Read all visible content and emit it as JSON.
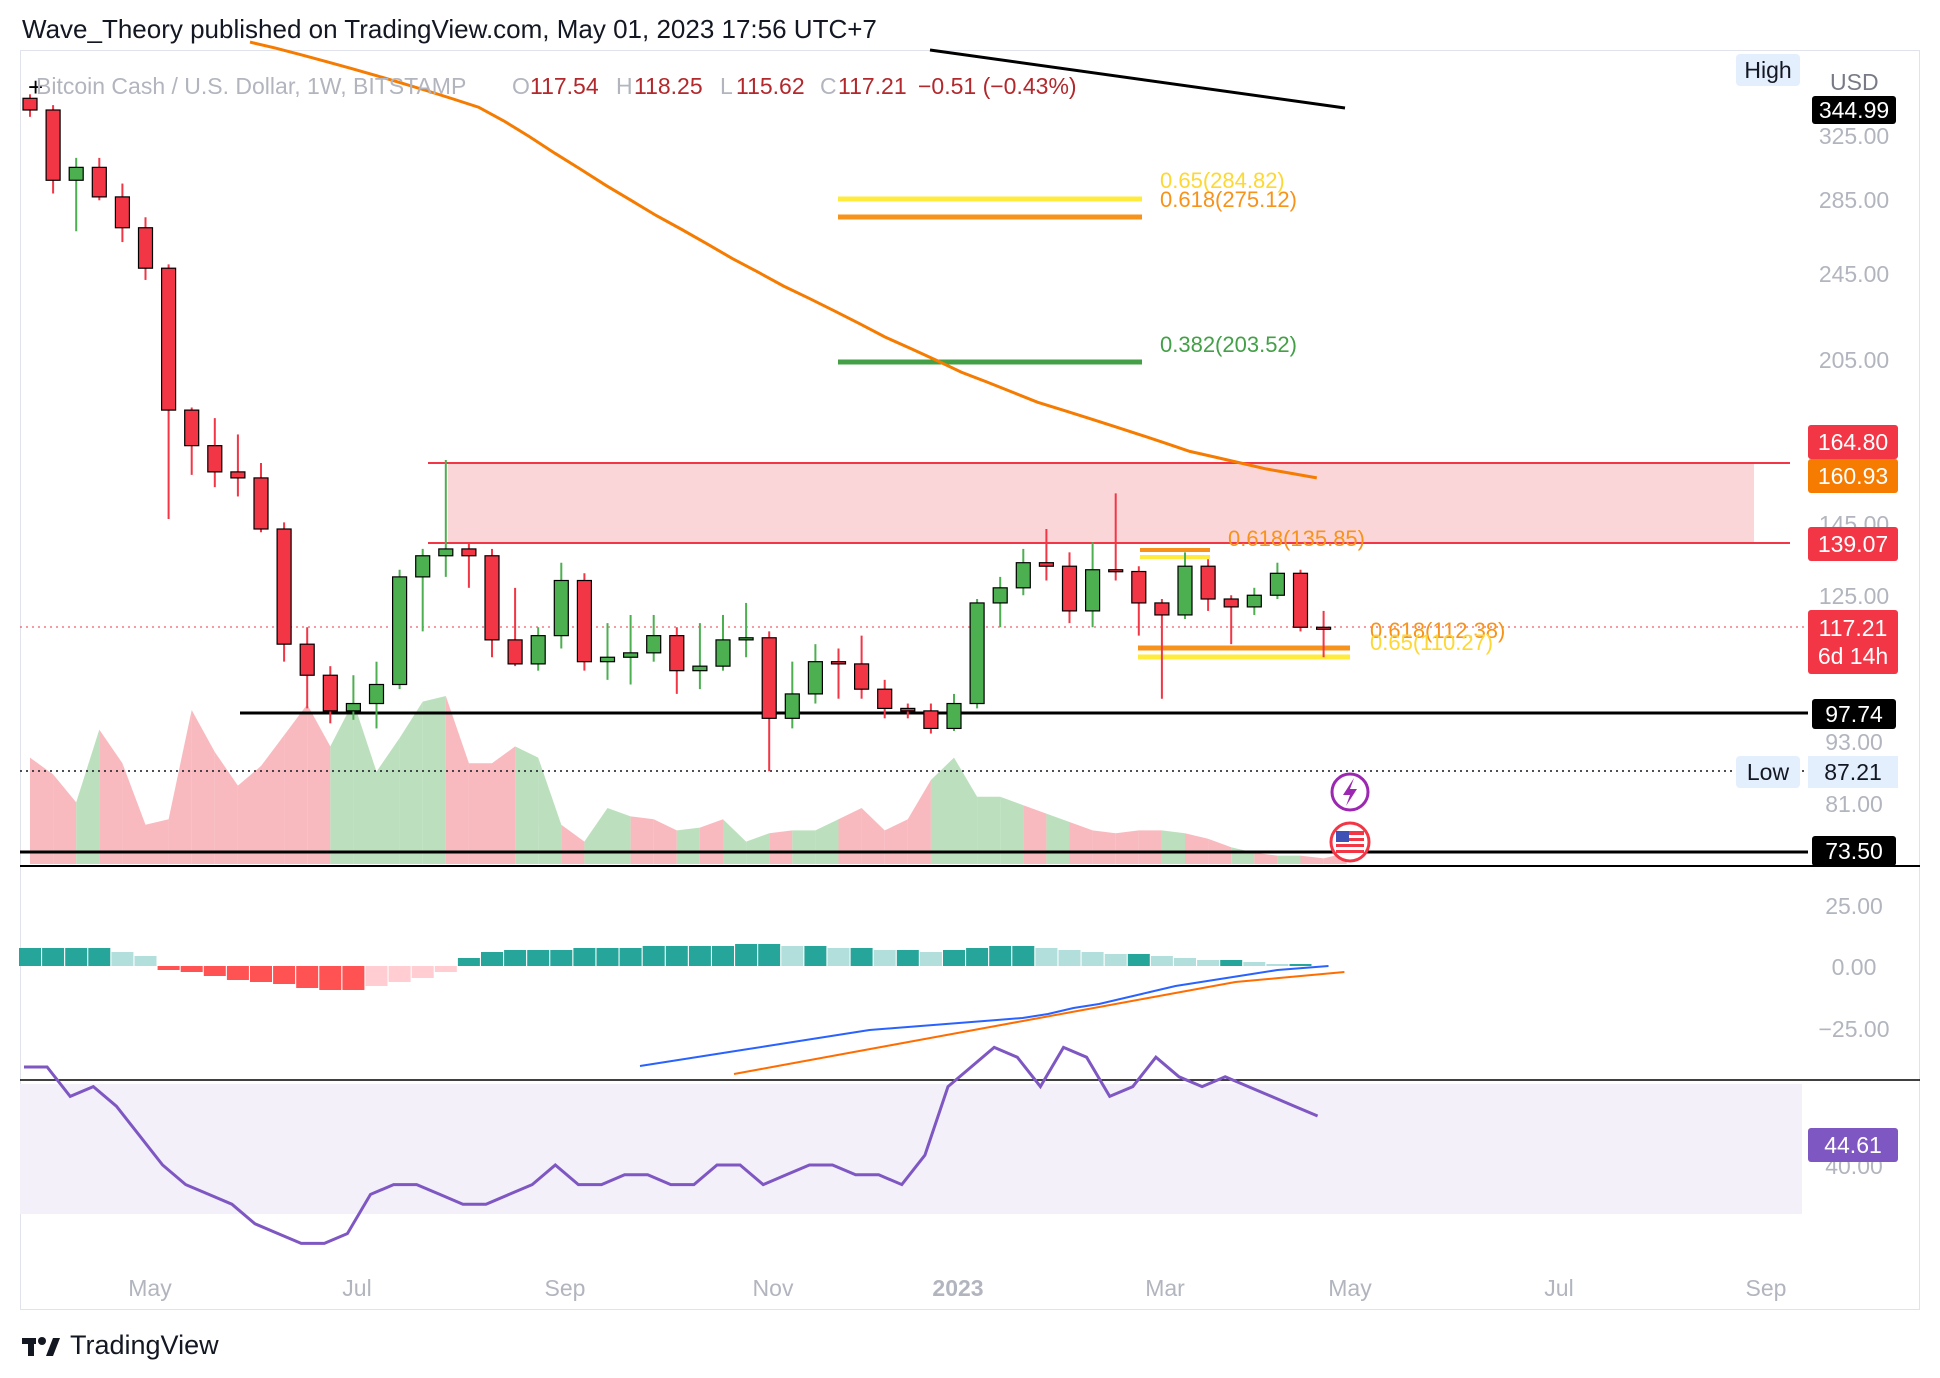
{
  "header": {
    "text": "Wave_Theory published on TradingView.com, May 01, 2023 17:56 UTC+7"
  },
  "footer": {
    "brand": "TradingView"
  },
  "legend": {
    "symbol": "Bitcoin Cash / U.S. Dollar, 1W, BITSTAMP",
    "o_label": "O",
    "o_value": "117.54",
    "h_label": "H",
    "h_value": "118.25",
    "l_label": "L",
    "l_value": "115.62",
    "c_label": "C",
    "c_value": "117.21",
    "change": "−0.51 (−0.43%)"
  },
  "colors": {
    "up": "#4caf50",
    "down": "#f23645",
    "ema": "#f57c00",
    "fib_green": "#43a047",
    "fib_yellow": "#ffeb3b",
    "fib_orange": "#f7931a",
    "zone": "#f8c8cc",
    "macd_line": "#2962ff",
    "signal_line": "#ff6d00",
    "rsi": "#7e57c2",
    "rsi_band": "#f3f0fa"
  },
  "chart_data": [
    {
      "type": "candlestick",
      "title": "Bitcoin Cash / U.S. Dollar, 1W, BITSTAMP",
      "y_unit": "USD",
      "y_ticks": [
        "325.00",
        "285.00",
        "245.00",
        "205.00",
        "145.00",
        "125.00",
        "93.00",
        "81.00"
      ],
      "x_ticks": [
        "May",
        "Jul",
        "Sep",
        "Nov",
        "2023",
        "Mar",
        "May",
        "Jul",
        "Sep"
      ],
      "price_labels": [
        {
          "text": "344.99",
          "style": "black"
        },
        {
          "text": "164.80",
          "style": "red"
        },
        {
          "text": "160.93",
          "style": "orange"
        },
        {
          "text": "139.07",
          "style": "red"
        },
        {
          "text": "117.21",
          "style": "red"
        },
        {
          "text": "6d 14h",
          "style": "red"
        },
        {
          "text": "97.74",
          "style": "black"
        },
        {
          "text": "87.21",
          "style": "plain"
        },
        {
          "text": "73.50",
          "style": "black"
        }
      ],
      "high_label": "High",
      "low_label": "Low",
      "currency": "USD",
      "fib_levels": [
        {
          "text": "0.65(284.82)",
          "value": 284.82,
          "color": "yellow"
        },
        {
          "text": "0.618(275.12)",
          "value": 275.12,
          "color": "orange"
        },
        {
          "text": "0.382(203.52)",
          "value": 203.52,
          "color": "green"
        },
        {
          "text": "0.618(135.85)",
          "value": 135.85,
          "color": "orange"
        },
        {
          "text": "0.618(112.38)",
          "value": 112.38,
          "color": "orange"
        },
        {
          "text": "0.65(110.27)",
          "value": 110.27,
          "color": "yellow"
        }
      ],
      "resistance_zone": [
        139.07,
        164.8
      ],
      "support_levels": [
        97.74,
        73.5,
        87.21
      ],
      "candles": [
        {
          "o": 362,
          "h": 368,
          "l": 340,
          "c": 345
        },
        {
          "o": 345,
          "h": 352,
          "l": 290,
          "c": 298
        },
        {
          "o": 298,
          "h": 312,
          "l": 268,
          "c": 306
        },
        {
          "o": 306,
          "h": 312,
          "l": 286,
          "c": 288
        },
        {
          "o": 288,
          "h": 296,
          "l": 262,
          "c": 270
        },
        {
          "o": 270,
          "h": 276,
          "l": 242,
          "c": 248
        },
        {
          "o": 248,
          "h": 250,
          "l": 148,
          "c": 185
        },
        {
          "o": 185,
          "h": 186,
          "l": 162,
          "c": 172
        },
        {
          "o": 172,
          "h": 182,
          "l": 158,
          "c": 163
        },
        {
          "o": 163,
          "h": 176,
          "l": 155,
          "c": 161
        },
        {
          "o": 161,
          "h": 166,
          "l": 144,
          "c": 145
        },
        {
          "o": 145,
          "h": 147,
          "l": 110,
          "c": 114
        },
        {
          "o": 114,
          "h": 118,
          "l": 100,
          "c": 107
        },
        {
          "o": 107,
          "h": 109,
          "l": 97,
          "c": 99.5
        },
        {
          "o": 99.5,
          "h": 107,
          "l": 97.7,
          "c": 101
        },
        {
          "o": 101,
          "h": 110,
          "l": 96,
          "c": 105
        },
        {
          "o": 105,
          "h": 133,
          "l": 104,
          "c": 131
        },
        {
          "o": 131,
          "h": 139,
          "l": 117,
          "c": 137
        },
        {
          "o": 137,
          "h": 167,
          "l": 131,
          "c": 139
        },
        {
          "o": 139,
          "h": 141,
          "l": 128,
          "c": 137
        },
        {
          "o": 137,
          "h": 139,
          "l": 111,
          "c": 115
        },
        {
          "o": 115,
          "h": 128,
          "l": 109,
          "c": 109.5
        },
        {
          "o": 109.5,
          "h": 118,
          "l": 108,
          "c": 116
        },
        {
          "o": 116,
          "h": 135,
          "l": 113,
          "c": 130
        },
        {
          "o": 130,
          "h": 132,
          "l": 108,
          "c": 110
        },
        {
          "o": 110,
          "h": 119,
          "l": 106,
          "c": 111
        },
        {
          "o": 111,
          "h": 121,
          "l": 105,
          "c": 112
        },
        {
          "o": 112,
          "h": 121,
          "l": 110,
          "c": 116
        },
        {
          "o": 116,
          "h": 118,
          "l": 103,
          "c": 108
        },
        {
          "o": 108,
          "h": 119,
          "l": 104,
          "c": 109
        },
        {
          "o": 109,
          "h": 121,
          "l": 108,
          "c": 115
        },
        {
          "o": 115,
          "h": 124,
          "l": 111,
          "c": 115.5
        },
        {
          "o": 115.5,
          "h": 117,
          "l": 88,
          "c": 98
        },
        {
          "o": 98,
          "h": 110,
          "l": 96,
          "c": 103
        },
        {
          "o": 103,
          "h": 114,
          "l": 101,
          "c": 110
        },
        {
          "o": 110,
          "h": 113,
          "l": 102,
          "c": 109.5
        },
        {
          "o": 109.5,
          "h": 116,
          "l": 102,
          "c": 104
        },
        {
          "o": 104,
          "h": 106,
          "l": 98,
          "c": 100
        },
        {
          "o": 100,
          "h": 101,
          "l": 98,
          "c": 99.5
        },
        {
          "o": 99.5,
          "h": 101,
          "l": 95,
          "c": 96
        },
        {
          "o": 96,
          "h": 103,
          "l": 95.5,
          "c": 101
        },
        {
          "o": 101,
          "h": 125,
          "l": 100,
          "c": 124
        },
        {
          "o": 124,
          "h": 131,
          "l": 118,
          "c": 128
        },
        {
          "o": 128,
          "h": 139,
          "l": 126,
          "c": 135
        },
        {
          "o": 135,
          "h": 145,
          "l": 130,
          "c": 134
        },
        {
          "o": 134,
          "h": 138,
          "l": 119,
          "c": 122
        },
        {
          "o": 122,
          "h": 141,
          "l": 118,
          "c": 133
        },
        {
          "o": 133,
          "h": 156,
          "l": 130,
          "c": 132.5
        },
        {
          "o": 132.5,
          "h": 134,
          "l": 116,
          "c": 124
        },
        {
          "o": 124,
          "h": 125,
          "l": 102,
          "c": 121
        },
        {
          "o": 121,
          "h": 138,
          "l": 120,
          "c": 134
        },
        {
          "o": 134,
          "h": 136,
          "l": 122,
          "c": 125
        },
        {
          "o": 125,
          "h": 126,
          "l": 114,
          "c": 123
        },
        {
          "o": 123,
          "h": 128,
          "l": 121,
          "c": 126
        },
        {
          "o": 126,
          "h": 135,
          "l": 125,
          "c": 132
        },
        {
          "o": 132,
          "h": 133,
          "l": 117,
          "c": 118
        },
        {
          "o": 118,
          "h": 122,
          "l": 111,
          "c": 117.54
        }
      ],
      "ema": [
        456,
        445,
        433,
        421,
        409,
        397,
        385,
        373,
        361,
        349,
        337,
        326,
        315,
        305,
        295,
        286,
        277,
        269,
        261,
        253,
        246,
        239,
        233,
        227,
        221,
        215,
        210,
        205,
        200,
        196,
        192,
        188,
        185,
        182,
        179,
        176,
        173,
        170,
        168,
        166,
        164,
        162.5,
        161
      ],
      "volume": [
        38,
        32,
        22,
        48,
        36,
        14,
        16,
        55,
        40,
        28,
        35,
        46,
        57,
        42,
        58,
        33,
        45,
        58,
        60,
        36,
        36,
        42,
        38,
        14,
        8,
        20,
        17,
        16,
        12,
        13,
        16,
        8,
        11,
        12,
        12,
        16,
        20,
        12,
        16,
        30,
        38,
        24,
        24,
        21,
        18,
        15,
        12,
        11,
        12,
        12,
        11,
        9,
        6,
        4,
        3,
        3,
        2,
        4
      ],
      "volume_up": [
        0,
        0,
        1,
        0,
        0,
        0,
        0,
        0,
        0,
        0,
        0,
        0,
        0,
        1,
        1,
        1,
        1,
        1,
        0,
        0,
        0,
        1,
        1,
        0,
        1,
        1,
        0,
        0,
        1,
        0,
        1,
        1,
        0,
        1,
        1,
        0,
        0,
        0,
        0,
        1,
        1,
        1,
        1,
        0,
        1,
        0,
        0,
        0,
        0,
        1,
        0,
        0,
        1,
        0,
        1,
        0,
        0,
        0
      ]
    },
    {
      "type": "bar",
      "title": "MACD",
      "y_ticks": [
        "25.00",
        "0.00",
        "−25.00"
      ],
      "histogram": [
        9,
        9,
        9,
        9,
        7,
        5,
        -2,
        -3,
        -5,
        -7,
        -8,
        -9,
        -11,
        -12,
        -12,
        -10,
        -8,
        -6,
        -3,
        4,
        7,
        8,
        8,
        8,
        9,
        9,
        9,
        10,
        10,
        10,
        10,
        11,
        11,
        10,
        10,
        9,
        9,
        8,
        8,
        7,
        8,
        9,
        10,
        10,
        9,
        8,
        7,
        6,
        6,
        5,
        4,
        3,
        3,
        2,
        1,
        1
      ],
      "macd_line": [
        -50,
        -48,
        -46,
        -44,
        -42,
        -40,
        -38,
        -36,
        -34,
        -32,
        -31,
        -30,
        -29,
        -28,
        -27,
        -26,
        -24,
        -21,
        -19,
        -16,
        -13,
        -10,
        -8,
        -6,
        -4,
        -2,
        -1,
        0
      ],
      "signal_line": [
        -54,
        -52,
        -50,
        -48,
        -46,
        -44,
        -42,
        -40,
        -38,
        -36,
        -34,
        -32,
        -30,
        -28,
        -26,
        -24,
        -22,
        -20,
        -18,
        -16,
        -14,
        -12,
        -10,
        -8,
        -7,
        -6,
        -5,
        -4,
        -3
      ]
    },
    {
      "type": "line",
      "title": "RSI",
      "y_ticks": [
        "40.00"
      ],
      "current_label": "44.61",
      "rsi": [
        50,
        50,
        47,
        48,
        46,
        43,
        40,
        38,
        37,
        36,
        34,
        33,
        32,
        32,
        33,
        37,
        38,
        38,
        37,
        36,
        36,
        37,
        38,
        40,
        38,
        38,
        39,
        39,
        38,
        38,
        40,
        40,
        38,
        39,
        40,
        40,
        39,
        39,
        38,
        41,
        48,
        50,
        52,
        51,
        48,
        52,
        51,
        47,
        48,
        51,
        49,
        48,
        49,
        48,
        47,
        46,
        45
      ]
    }
  ]
}
